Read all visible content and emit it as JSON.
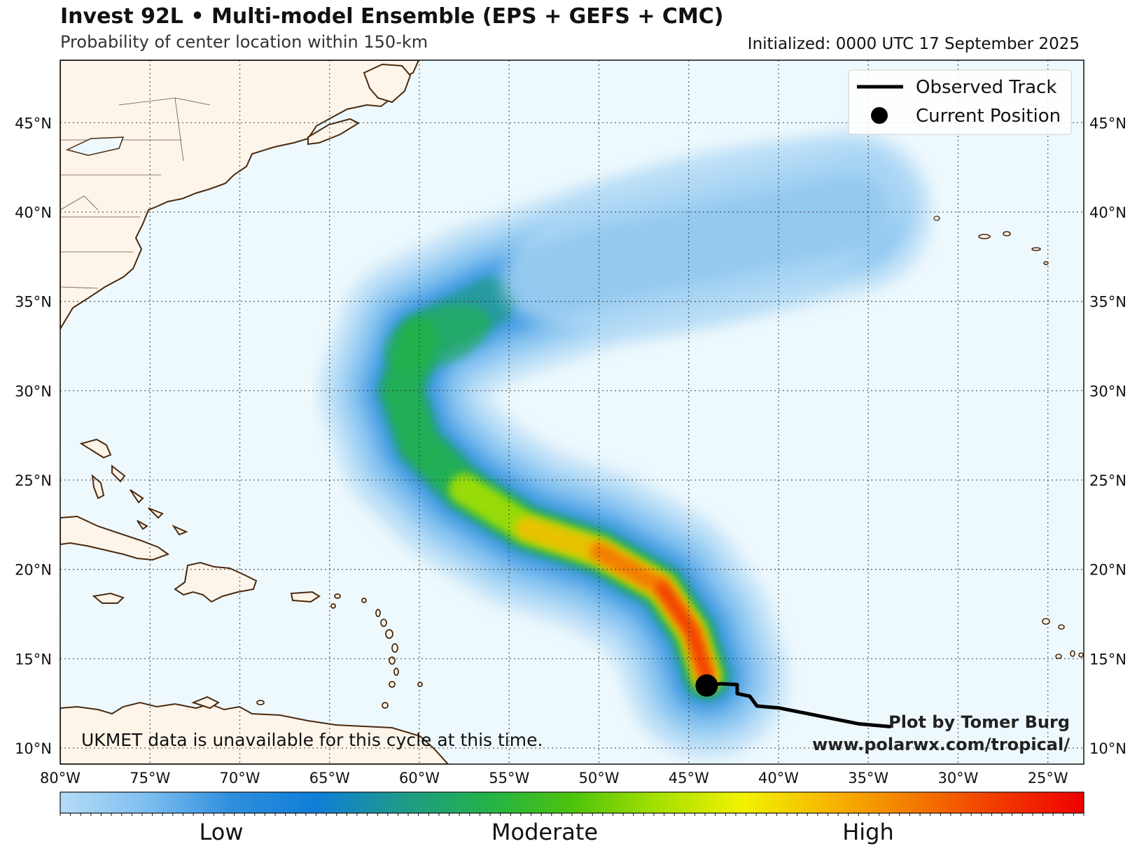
{
  "title": "Invest 92L • Multi-model Ensemble (EPS + GEFS + CMC)",
  "subtitle": "Probability of center location within 150-km",
  "initialized": "Initialized: 0000 UTC 17 September 2025",
  "note": "UKMET data is unavailable for this cycle at this time.",
  "credit": {
    "line1": "Plot by Tomer Burg",
    "line2": "www.polarwx.com/tropical/"
  },
  "legend": {
    "observed_track": "Observed Track",
    "current_position": "Current Position"
  },
  "colorbar": {
    "low": "Low",
    "moderate": "Moderate",
    "high": "High",
    "colors": [
      "#b6dcf6",
      "#7fbff0",
      "#2f8fdd",
      "#0f7ed8",
      "#1f9a8a",
      "#22b24a",
      "#4cc30c",
      "#a6e000",
      "#f2f200",
      "#f6b800",
      "#f47a00",
      "#f23a00",
      "#ee0000"
    ]
  },
  "map": {
    "lon_range": [
      -80,
      -23
    ],
    "lat_range": [
      9.1,
      48.5
    ],
    "lat_labels": [
      "10°N",
      "15°N",
      "20°N",
      "25°N",
      "30°N",
      "35°N",
      "40°N",
      "45°N"
    ],
    "lon_labels": [
      "80°W",
      "75°W",
      "70°W",
      "65°W",
      "60°W",
      "55°W",
      "50°W",
      "45°W",
      "40°W",
      "35°W",
      "30°W",
      "25°W"
    ],
    "ocean_color": "#eef9fd",
    "land_color": "#fdf5e9",
    "coast_color": "#4a2a10"
  },
  "current_position": {
    "lon": -44.0,
    "lat": 13.5
  },
  "observed_track": [
    {
      "lon": -33.8,
      "lat": 11.2
    },
    {
      "lon": -35.5,
      "lat": 11.35
    },
    {
      "lon": -37.0,
      "lat": 11.65
    },
    {
      "lon": -38.5,
      "lat": 11.95
    },
    {
      "lon": -40.0,
      "lat": 12.25
    },
    {
      "lon": -41.2,
      "lat": 12.35
    },
    {
      "lon": -41.6,
      "lat": 12.9
    },
    {
      "lon": -42.3,
      "lat": 13.05
    },
    {
      "lon": -42.3,
      "lat": 13.55
    },
    {
      "lon": -43.2,
      "lat": 13.6
    },
    {
      "lon": -44.0,
      "lat": 13.5
    }
  ],
  "probability_spine": [
    {
      "lon": -44.0,
      "lat": 14.0
    },
    {
      "lon": -44.8,
      "lat": 16.5
    },
    {
      "lon": -46.5,
      "lat": 19.0
    },
    {
      "lon": -50.0,
      "lat": 21.0
    },
    {
      "lon": -54.0,
      "lat": 22.3
    },
    {
      "lon": -57.5,
      "lat": 24.5
    },
    {
      "lon": -60.0,
      "lat": 27.0
    },
    {
      "lon": -61.0,
      "lat": 30.0
    },
    {
      "lon": -60.0,
      "lat": 33.0
    },
    {
      "lon": -56.0,
      "lat": 35.0
    },
    {
      "lon": -50.0,
      "lat": 37.0
    },
    {
      "lon": -43.0,
      "lat": 38.5
    },
    {
      "lon": -36.0,
      "lat": 40.0
    }
  ]
}
